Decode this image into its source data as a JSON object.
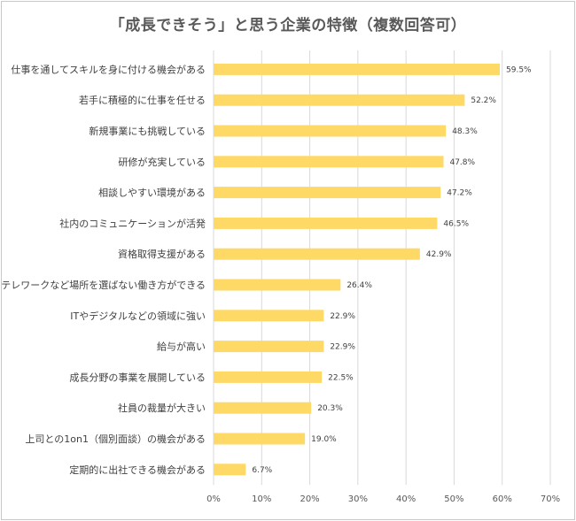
{
  "chart_data": {
    "type": "bar",
    "orientation": "horizontal",
    "title": "「成長できそう」と思う企業の特徴（複数回答可）",
    "categories": [
      "仕事を通してスキルを身に付ける機会がある",
      "若手に積極的に仕事を任せる",
      "新規事業にも挑戦している",
      "研修が充実している",
      "相談しやすい環境がある",
      "社内のコミュニケーションが活発",
      "資格取得支援がある",
      "テレワークなど場所を選ばない働き方ができる",
      "ITやデジタルなどの領域に強い",
      "給与が高い",
      "成長分野の事業を展開している",
      "社員の裁量が大きい",
      "上司との1on1（個別面談）の機会がある",
      "定期的に出社できる機会がある"
    ],
    "values": [
      59.5,
      52.2,
      48.3,
      47.8,
      47.2,
      46.5,
      42.9,
      26.4,
      22.9,
      22.9,
      22.5,
      20.3,
      19.0,
      6.7
    ],
    "value_labels": [
      "59.5%",
      "52.2%",
      "48.3%",
      "47.8%",
      "47.2%",
      "46.5%",
      "42.9%",
      "26.4%",
      "22.9%",
      "22.9%",
      "22.5%",
      "20.3%",
      "19.0%",
      "6.7%"
    ],
    "x_ticks": [
      "0%",
      "10%",
      "20%",
      "30%",
      "40%",
      "50%",
      "60%",
      "70%"
    ],
    "xlim": [
      0,
      70
    ],
    "grid": true,
    "bar_color": "#FFD966",
    "grid_color": "#d9d9d9"
  }
}
